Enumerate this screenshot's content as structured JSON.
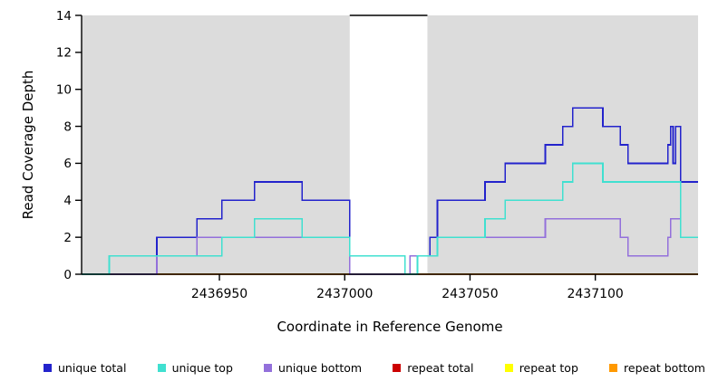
{
  "chart_data": {
    "type": "line",
    "subtype": "step",
    "title": "",
    "xlabel": "Coordinate in Reference Genome",
    "ylabel": "Read Coverage Depth",
    "xlim": [
      2436895,
      2437141
    ],
    "ylim": [
      0,
      14
    ],
    "xticks": [
      2436950,
      2437000,
      2437050,
      2437100
    ],
    "yticks": [
      0,
      2,
      4,
      6,
      8,
      10,
      12,
      14
    ],
    "grid": false,
    "legend_position": "bottom",
    "shaded_regions": [
      {
        "x0": 2436895,
        "x1": 2437002,
        "color": "#dcdcdc"
      },
      {
        "x0": 2437033,
        "x1": 2437141,
        "color": "#dcdcdc"
      }
    ],
    "gap_top_line": {
      "x0": 2437002,
      "x1": 2437033,
      "y": 14,
      "color": "#000000"
    },
    "series": [
      {
        "name": "repeat total",
        "color": "#cc0000",
        "steps": [
          [
            2436920,
            0
          ]
        ]
      },
      {
        "name": "repeat top",
        "color": "#ffff00",
        "steps": [
          [
            2436920,
            0
          ]
        ]
      },
      {
        "name": "repeat bottom",
        "color": "#ff9900",
        "steps": [
          [
            2436920,
            0
          ]
        ]
      },
      {
        "name": "unique total",
        "color": "#2323cc",
        "steps": [
          [
            2436895,
            0
          ],
          [
            2436906,
            1
          ],
          [
            2436925,
            2
          ],
          [
            2436941,
            3
          ],
          [
            2436951,
            4
          ],
          [
            2436964,
            5
          ],
          [
            2436983,
            4
          ],
          [
            2437002,
            1
          ],
          [
            2437024,
            0
          ],
          [
            2437029,
            1
          ],
          [
            2437034,
            2
          ],
          [
            2437037,
            4
          ],
          [
            2437056,
            5
          ],
          [
            2437064,
            6
          ],
          [
            2437080,
            7
          ],
          [
            2437087,
            8
          ],
          [
            2437091,
            9
          ],
          [
            2437103,
            8
          ],
          [
            2437110,
            7
          ],
          [
            2437113,
            6
          ],
          [
            2437129,
            7
          ],
          [
            2437130,
            8
          ],
          [
            2437131,
            6
          ],
          [
            2437132,
            8
          ],
          [
            2437134,
            5
          ]
        ]
      },
      {
        "name": "unique bottom",
        "color": "#9370db",
        "steps": [
          [
            2436895,
            0
          ],
          [
            2436925,
            1
          ],
          [
            2436941,
            2
          ],
          [
            2437002,
            0
          ],
          [
            2437026,
            1
          ],
          [
            2437037,
            2
          ],
          [
            2437080,
            3
          ],
          [
            2437110,
            2
          ],
          [
            2437113,
            1
          ],
          [
            2437129,
            2
          ],
          [
            2437130,
            3
          ],
          [
            2437134,
            2
          ]
        ]
      },
      {
        "name": "unique top",
        "color": "#40e0d0",
        "steps": [
          [
            2436895,
            0
          ],
          [
            2436906,
            1
          ],
          [
            2436951,
            2
          ],
          [
            2436964,
            3
          ],
          [
            2436983,
            2
          ],
          [
            2437002,
            1
          ],
          [
            2437024,
            0
          ],
          [
            2437029,
            1
          ],
          [
            2437037,
            2
          ],
          [
            2437056,
            3
          ],
          [
            2437064,
            4
          ],
          [
            2437087,
            5
          ],
          [
            2437091,
            6
          ],
          [
            2437103,
            5
          ],
          [
            2437134,
            2
          ]
        ]
      }
    ],
    "legend": [
      {
        "label": "unique total",
        "color": "#2323cc"
      },
      {
        "label": "unique top",
        "color": "#40e0d0"
      },
      {
        "label": "unique bottom",
        "color": "#9370db"
      },
      {
        "label": "repeat total",
        "color": "#cc0000"
      },
      {
        "label": "repeat top",
        "color": "#ffff00"
      },
      {
        "label": "repeat bottom",
        "color": "#ff9900"
      }
    ]
  }
}
